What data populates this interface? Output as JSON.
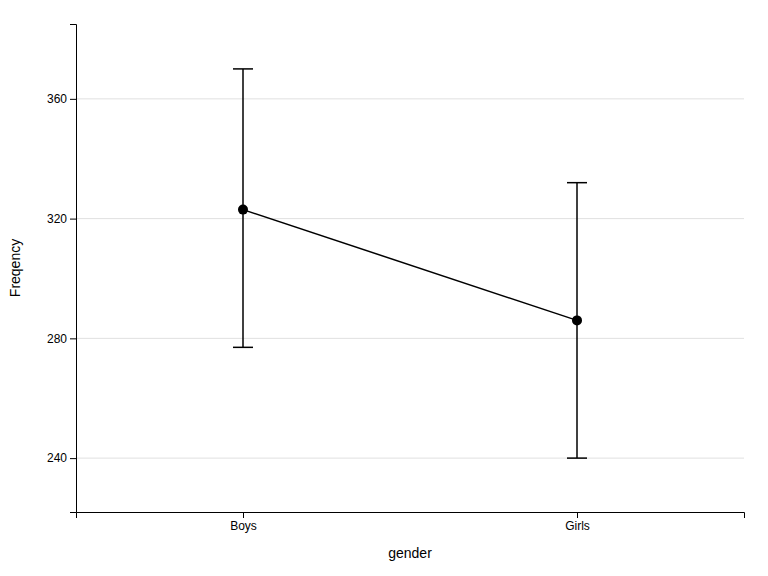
{
  "chart_data": {
    "type": "line",
    "xlabel": "gender",
    "ylabel": "Freqency",
    "categories": [
      "Boys",
      "Girls"
    ],
    "values": [
      323,
      286
    ],
    "ci_lower": [
      277,
      240
    ],
    "ci_upper": [
      370,
      332
    ],
    "ylim": [
      222,
      385
    ],
    "yticks": [
      240,
      280,
      320,
      360
    ],
    "grid": true,
    "color": "#000000",
    "marker": "circle"
  }
}
